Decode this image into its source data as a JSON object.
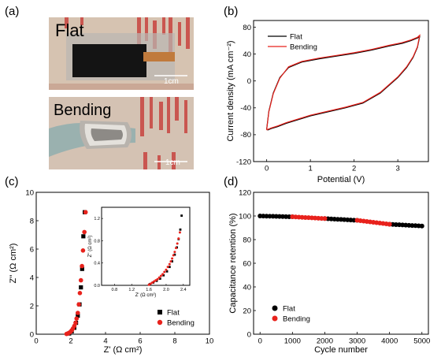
{
  "panels": {
    "a": {
      "tag": "(a)",
      "flat_label": "Flat",
      "bending_label": "Bending",
      "scale_top": "1cm",
      "scale_bottom": "1cm"
    },
    "b": {
      "tag": "(b)"
    },
    "c": {
      "tag": "(c)"
    },
    "d": {
      "tag": "(d)"
    }
  },
  "colors": {
    "flat": "#000000",
    "bending": "#e8221c",
    "photo_bg": "#d9c6b4",
    "glove": "#9fb6b4"
  },
  "chart_data": [
    {
      "id": "b",
      "type": "line",
      "xlabel": "Potential (V)",
      "ylabel": "Current density (mA cm⁻²)",
      "xlim": [
        -0.3,
        3.7
      ],
      "ylim": [
        -120,
        90
      ],
      "xticks": [
        "0",
        "1",
        "2",
        "3"
      ],
      "yticks": [
        "80",
        "40",
        "0",
        "-40",
        "-80",
        "-120"
      ],
      "legend": [
        "Flat",
        "Bending"
      ],
      "legend_position": "top-right",
      "series": [
        {
          "name": "Flat",
          "x": [
            0,
            0.05,
            0.15,
            0.3,
            0.5,
            0.8,
            1.2,
            1.6,
            2.0,
            2.4,
            2.8,
            3.1,
            3.3,
            3.45,
            3.5,
            3.45,
            3.35,
            3.2,
            3.0,
            2.6,
            2.2,
            1.8,
            1.4,
            1.0,
            0.7,
            0.45,
            0.25,
            0.1,
            0.03,
            0
          ],
          "y": [
            -72,
            -45,
            -18,
            5,
            20,
            28,
            33,
            37,
            41,
            46,
            52,
            56,
            60,
            64,
            66,
            50,
            35,
            20,
            5,
            -18,
            -33,
            -40,
            -46,
            -52,
            -58,
            -63,
            -68,
            -71,
            -73,
            -72
          ]
        },
        {
          "name": "Bending",
          "x": [
            0,
            0.05,
            0.15,
            0.3,
            0.5,
            0.8,
            1.2,
            1.6,
            2.0,
            2.4,
            2.8,
            3.1,
            3.3,
            3.45,
            3.5,
            3.45,
            3.35,
            3.2,
            3.0,
            2.6,
            2.2,
            1.8,
            1.4,
            1.0,
            0.7,
            0.45,
            0.25,
            0.1,
            0.03,
            0
          ],
          "y": [
            -73,
            -46,
            -19,
            4,
            21,
            29,
            34,
            38,
            42,
            47,
            53,
            57,
            61,
            65,
            68,
            51,
            36,
            21,
            6,
            -17,
            -32,
            -39,
            -45,
            -51,
            -57,
            -62,
            -67,
            -70,
            -72,
            -73
          ]
        }
      ]
    },
    {
      "id": "c",
      "type": "scatter",
      "xlabel": "Z' (Ω cm²)",
      "ylabel": "Z'' (Ω cm²)",
      "xlim": [
        0,
        10
      ],
      "ylim": [
        0,
        10
      ],
      "xticks": [
        "0",
        "2",
        "4",
        "6",
        "8",
        "10"
      ],
      "yticks": [
        "0",
        "2",
        "4",
        "6",
        "8",
        "10"
      ],
      "legend": [
        "Flat",
        "Bending"
      ],
      "legend_position": "bottom-right",
      "series": [
        {
          "name": "Flat",
          "x": [
            1.9,
            2.05,
            2.2,
            2.3,
            2.4,
            2.5,
            2.58,
            2.65,
            2.72,
            2.8
          ],
          "y": [
            0.05,
            0.2,
            0.45,
            0.8,
            1.3,
            2.1,
            3.3,
            4.6,
            6.9,
            8.6
          ]
        },
        {
          "name": "Bending",
          "x": [
            1.75,
            1.82,
            1.9,
            1.98,
            2.05,
            2.12,
            2.2,
            2.27,
            2.33,
            2.4,
            2.46,
            2.52,
            2.58,
            2.64,
            2.7,
            2.78,
            2.85
          ],
          "y": [
            0.02,
            0.05,
            0.1,
            0.17,
            0.27,
            0.4,
            0.58,
            0.8,
            1.1,
            1.5,
            2.1,
            2.9,
            3.8,
            4.8,
            5.9,
            7.2,
            8.6
          ]
        }
      ],
      "inset": {
        "xlim": [
          0.5,
          2.55
        ],
        "ylim": [
          0,
          1.4
        ],
        "xticks": [
          "0.8",
          "1.2",
          "1.6",
          "2.0",
          "2.4"
        ],
        "yticks": [
          "0.0",
          "0.4",
          "0.8",
          "1.2"
        ],
        "xlabel": "Z' (Ω cm²)",
        "ylabel": "Z'' (Ω cm²)",
        "series": [
          {
            "name": "Flat",
            "x": [
              1.62,
              1.7,
              1.78,
              1.86,
              1.94,
              2.02,
              2.08,
              2.14,
              2.2,
              2.25,
              2.29,
              2.33,
              2.36
            ],
            "y": [
              0.02,
              0.05,
              0.08,
              0.12,
              0.18,
              0.25,
              0.33,
              0.43,
              0.55,
              0.68,
              0.83,
              1.0,
              1.25
            ]
          },
          {
            "name": "Bending",
            "x": [
              1.6,
              1.64,
              1.68,
              1.72,
              1.76,
              1.8,
              1.84,
              1.88,
              1.92,
              1.96,
              2.0,
              2.04,
              2.08,
              2.11,
              2.14,
              2.17,
              2.2,
              2.23,
              2.26,
              2.29,
              2.32
            ],
            "y": [
              0.01,
              0.03,
              0.05,
              0.07,
              0.09,
              0.11,
              0.14,
              0.17,
              0.2,
              0.24,
              0.28,
              0.33,
              0.38,
              0.43,
              0.48,
              0.54,
              0.6,
              0.67,
              0.75,
              0.84,
              0.95
            ]
          }
        ]
      }
    },
    {
      "id": "d",
      "type": "scatter",
      "xlabel": "Cycle number",
      "ylabel": "Capacitance retention (%)",
      "xlim": [
        -200,
        5200
      ],
      "ylim": [
        0,
        120
      ],
      "xticks": [
        "0",
        "1000",
        "2000",
        "3000",
        "4000",
        "5000"
      ],
      "yticks": [
        "0",
        "20",
        "40",
        "60",
        "80",
        "100",
        "120"
      ],
      "legend": [
        "Flat",
        "Bending"
      ],
      "legend_position": "bottom-left",
      "series": [
        {
          "name": "Flat",
          "segments": [
            [
              0,
              1000,
              100,
              99.3
            ],
            [
              2000,
              3000,
              97.8,
              96.3
            ],
            [
              4000,
              5000,
              93.0,
              91.5
            ]
          ]
        },
        {
          "name": "Bending",
          "segments": [
            [
              1000,
              2000,
              99.3,
              97.8
            ],
            [
              3000,
              4000,
              96.3,
              93.0
            ]
          ]
        }
      ]
    }
  ]
}
